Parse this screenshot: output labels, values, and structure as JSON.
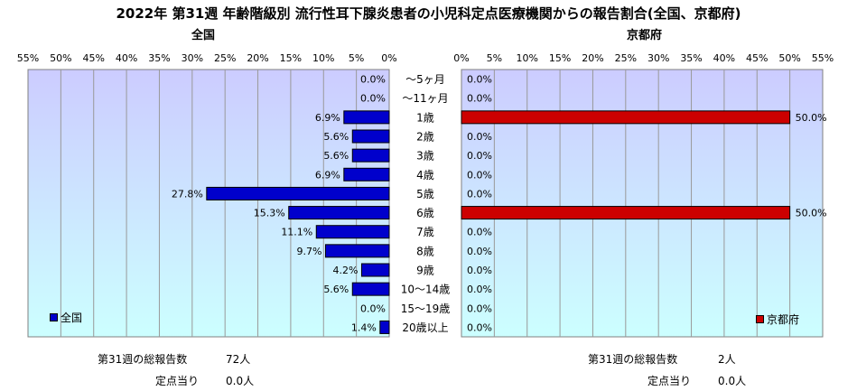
{
  "title": "2022年 第31週 年齢階級別 流行性耳下腺炎患者の小児科定点医療機関からの報告割合(全国、京都府)",
  "colors": {
    "national": "#0000cc",
    "kyoto": "#cc0000",
    "plot_bg_top": "#ccccff",
    "plot_bg_bottom": "#ccffff"
  },
  "chart_data": {
    "type": "bar",
    "categories": [
      "〜5ヶ月",
      "〜11ヶ月",
      "1歳",
      "2歳",
      "3歳",
      "4歳",
      "5歳",
      "6歳",
      "7歳",
      "8歳",
      "9歳",
      "10〜14歳",
      "15〜19歳",
      "20歳以上"
    ],
    "x_ticks": [
      "0%",
      "5%",
      "10%",
      "15%",
      "20%",
      "25%",
      "30%",
      "35%",
      "40%",
      "45%",
      "50%",
      "55%"
    ],
    "xlim": [
      0,
      55
    ],
    "series": [
      {
        "name": "全国",
        "subtitle": "全国",
        "values": [
          0.0,
          0.0,
          6.9,
          5.6,
          5.6,
          6.9,
          27.8,
          15.3,
          11.1,
          9.7,
          4.2,
          5.6,
          0.0,
          1.4
        ],
        "labels": [
          "0.0%",
          "0.0%",
          "6.9%",
          "5.6%",
          "5.6%",
          "6.9%",
          "27.8%",
          "15.3%",
          "11.1%",
          "9.7%",
          "4.2%",
          "5.6%",
          "0.0%",
          "1.4%"
        ]
      },
      {
        "name": "京都府",
        "subtitle": "京都府",
        "values": [
          0.0,
          0.0,
          50.0,
          0.0,
          0.0,
          0.0,
          0.0,
          50.0,
          0.0,
          0.0,
          0.0,
          0.0,
          0.0,
          0.0
        ],
        "labels": [
          "0.0%",
          "0.0%",
          "50.0%",
          "0.0%",
          "0.0%",
          "0.0%",
          "0.0%",
          "50.0%",
          "0.0%",
          "0.0%",
          "0.0%",
          "0.0%",
          "0.0%",
          "0.0%"
        ]
      }
    ]
  },
  "stats": {
    "national": {
      "total_label": "第31週の総報告数",
      "total_value": "72人",
      "per_label": "定点当り",
      "per_value": "0.0人"
    },
    "kyoto": {
      "total_label": "第31週の総報告数",
      "total_value": "2人",
      "per_label": "定点当り",
      "per_value": "0.0人"
    }
  }
}
